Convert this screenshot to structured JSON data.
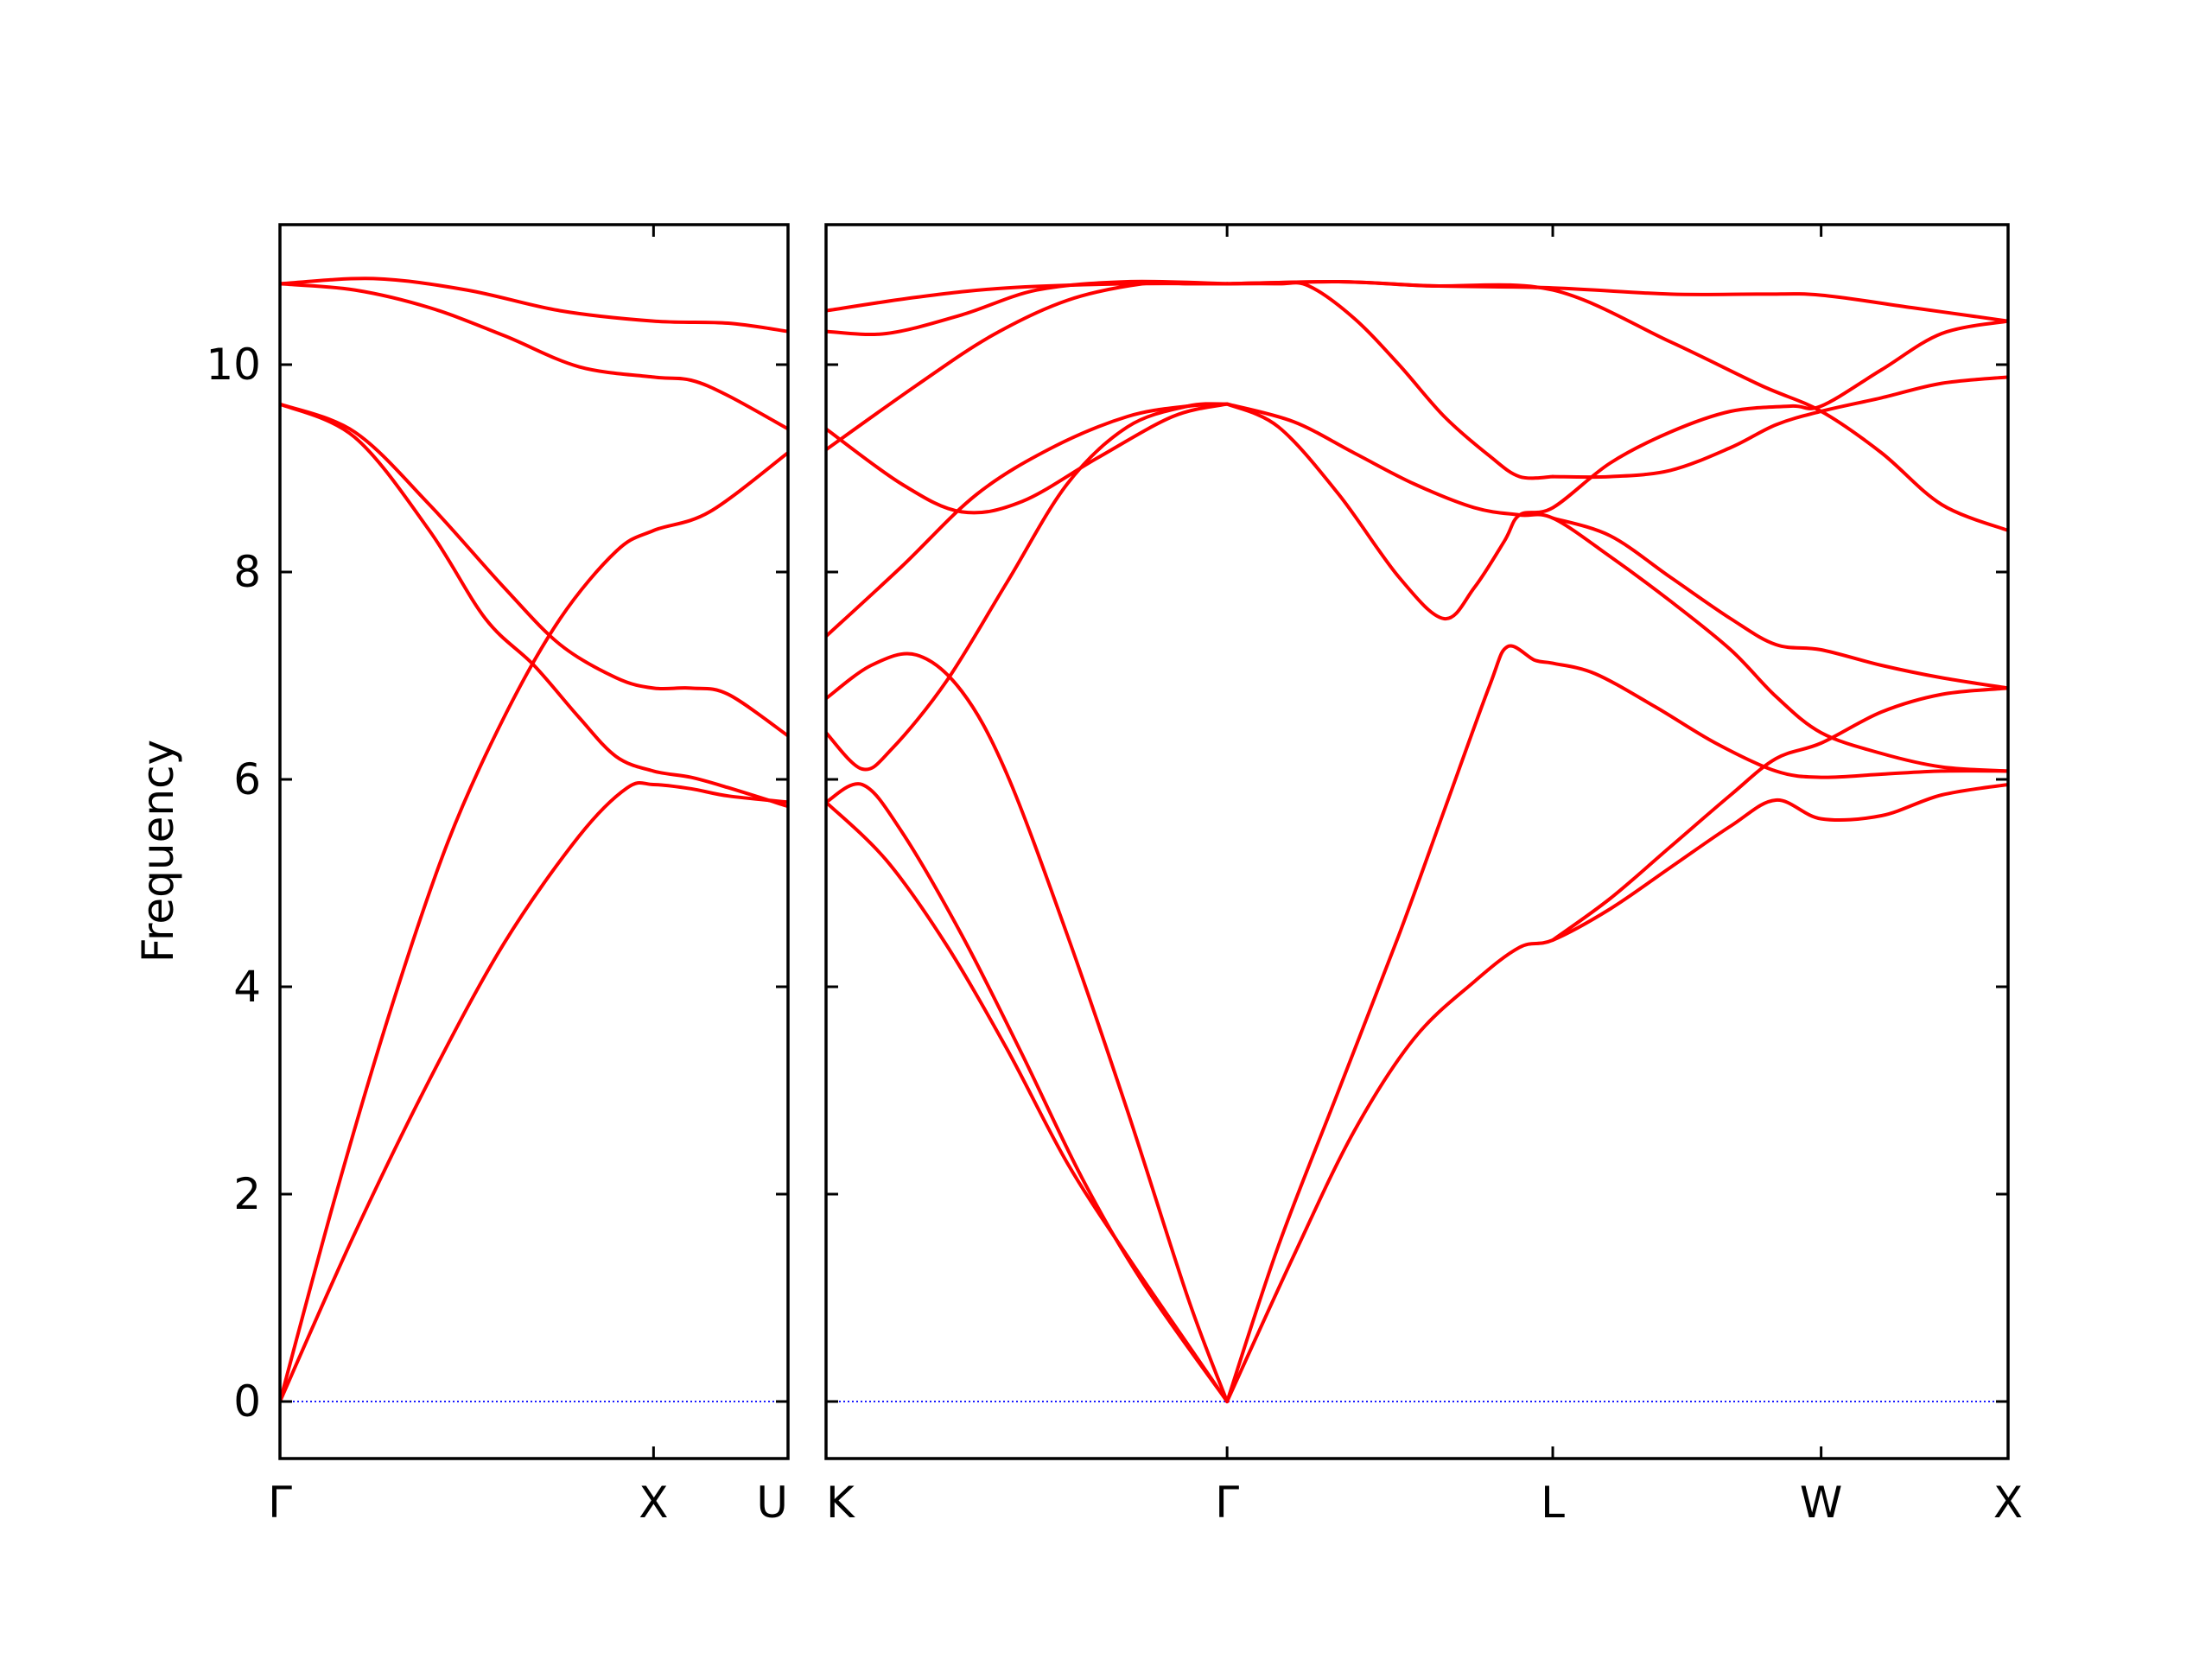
{
  "chart_data": {
    "type": "line",
    "ylabel": "Frequency",
    "xlabel": "",
    "title": "",
    "ylim": [
      -0.55,
      11.35
    ],
    "yticks": [
      0,
      2,
      4,
      6,
      8,
      10
    ],
    "colors": {
      "bands": "#ff0000",
      "zero_line": "#1a1aff",
      "axes": "#000000"
    },
    "zero_line_style": "dotted",
    "grid": false,
    "panels": [
      {
        "name": "segment-gamma-x-u",
        "xlim": [
          0,
          1.36
        ],
        "kpoints": [
          {
            "label": "Γ",
            "x": 0
          },
          {
            "label": "X",
            "x": 1.0
          },
          {
            "label": "U",
            "x": 1.36
          }
        ],
        "bands": [
          [
            [
              0,
              0
            ],
            [
              0.2,
              1.62
            ],
            [
              0.4,
              3.1
            ],
            [
              0.6,
              4.42
            ],
            [
              0.8,
              5.45
            ],
            [
              0.93,
              5.92
            ],
            [
              1.0,
              5.95
            ],
            [
              1.1,
              5.91
            ],
            [
              1.2,
              5.84
            ],
            [
              1.36,
              5.78
            ]
          ],
          [
            [
              0,
              0
            ],
            [
              0.15,
              2.0
            ],
            [
              0.3,
              3.82
            ],
            [
              0.45,
              5.4
            ],
            [
              0.6,
              6.6
            ],
            [
              0.75,
              7.55
            ],
            [
              0.9,
              8.2
            ],
            [
              1.0,
              8.4
            ],
            [
              1.15,
              8.58
            ],
            [
              1.36,
              9.15
            ]
          ],
          [
            [
              0,
              9.62
            ],
            [
              0.2,
              9.3
            ],
            [
              0.4,
              8.4
            ],
            [
              0.55,
              7.55
            ],
            [
              0.68,
              7.1
            ],
            [
              0.8,
              6.6
            ],
            [
              0.9,
              6.22
            ],
            [
              1.0,
              6.08
            ],
            [
              1.1,
              6.02
            ],
            [
              1.2,
              5.92
            ],
            [
              1.36,
              5.74
            ]
          ],
          [
            [
              0,
              9.62
            ],
            [
              0.2,
              9.35
            ],
            [
              0.4,
              8.65
            ],
            [
              0.6,
              7.85
            ],
            [
              0.75,
              7.3
            ],
            [
              0.9,
              6.98
            ],
            [
              1.0,
              6.88
            ],
            [
              1.1,
              6.88
            ],
            [
              1.2,
              6.82
            ],
            [
              1.36,
              6.42
            ]
          ],
          [
            [
              0,
              10.78
            ],
            [
              0.2,
              10.72
            ],
            [
              0.4,
              10.55
            ],
            [
              0.6,
              10.28
            ],
            [
              0.8,
              9.98
            ],
            [
              1.0,
              9.88
            ],
            [
              1.1,
              9.85
            ],
            [
              1.2,
              9.7
            ],
            [
              1.36,
              9.38
            ]
          ],
          [
            [
              0,
              10.78
            ],
            [
              0.25,
              10.83
            ],
            [
              0.5,
              10.72
            ],
            [
              0.75,
              10.52
            ],
            [
              1.0,
              10.42
            ],
            [
              1.2,
              10.4
            ],
            [
              1.36,
              10.32
            ]
          ]
        ]
      },
      {
        "name": "segment-k-gamma-l-w-x",
        "xlim": [
          0,
          3.92
        ],
        "kpoints": [
          {
            "label": "K",
            "x": 0
          },
          {
            "label": "Γ",
            "x": 1.33
          },
          {
            "label": "L",
            "x": 2.41
          },
          {
            "label": "W",
            "x": 3.3
          },
          {
            "label": "X",
            "x": 3.92
          }
        ],
        "bands": [
          [
            [
              0,
              5.78
            ],
            [
              0.2,
              5.22
            ],
            [
              0.4,
              4.4
            ],
            [
              0.6,
              3.4
            ],
            [
              0.8,
              2.3
            ],
            [
              1.0,
              1.4
            ],
            [
              1.2,
              0.55
            ],
            [
              1.33,
              0
            ]
          ],
          [
            [
              0,
              5.78
            ],
            [
              0.12,
              5.95
            ],
            [
              0.25,
              5.5
            ],
            [
              0.45,
              4.5
            ],
            [
              0.65,
              3.35
            ],
            [
              0.85,
              2.15
            ],
            [
              1.05,
              1.15
            ],
            [
              1.33,
              0
            ]
          ],
          [
            [
              0,
              6.78
            ],
            [
              0.15,
              7.1
            ],
            [
              0.3,
              7.2
            ],
            [
              0.45,
              6.85
            ],
            [
              0.6,
              6.05
            ],
            [
              0.8,
              4.5
            ],
            [
              1.0,
              2.8
            ],
            [
              1.2,
              1.0
            ],
            [
              1.33,
              0
            ]
          ],
          [
            [
              0,
              6.45
            ],
            [
              0.12,
              6.1
            ],
            [
              0.22,
              6.3
            ],
            [
              0.4,
              6.95
            ],
            [
              0.6,
              7.9
            ],
            [
              0.8,
              8.85
            ],
            [
              1.0,
              9.4
            ],
            [
              1.2,
              9.6
            ],
            [
              1.33,
              9.62
            ]
          ],
          [
            [
              0,
              7.38
            ],
            [
              0.25,
              8.05
            ],
            [
              0.5,
              8.75
            ],
            [
              0.75,
              9.2
            ],
            [
              1.0,
              9.5
            ],
            [
              1.2,
              9.6
            ],
            [
              1.33,
              9.62
            ]
          ],
          [
            [
              0,
              9.38
            ],
            [
              0.25,
              8.85
            ],
            [
              0.45,
              8.58
            ],
            [
              0.65,
              8.68
            ],
            [
              0.9,
              9.1
            ],
            [
              1.15,
              9.5
            ],
            [
              1.33,
              9.62
            ]
          ],
          [
            [
              0,
              9.18
            ],
            [
              0.3,
              9.8
            ],
            [
              0.55,
              10.28
            ],
            [
              0.8,
              10.62
            ],
            [
              1.05,
              10.78
            ],
            [
              1.2,
              10.78
            ],
            [
              1.33,
              10.78
            ]
          ],
          [
            [
              0,
              10.32
            ],
            [
              0.2,
              10.3
            ],
            [
              0.45,
              10.48
            ],
            [
              0.7,
              10.72
            ],
            [
              1.0,
              10.8
            ],
            [
              1.33,
              10.78
            ]
          ],
          [
            [
              0,
              10.52
            ],
            [
              0.3,
              10.65
            ],
            [
              0.6,
              10.74
            ],
            [
              1.0,
              10.78
            ],
            [
              1.33,
              10.78
            ]
          ],
          [
            [
              1.33,
              0
            ],
            [
              1.5,
              1.5
            ],
            [
              1.7,
              3.0
            ],
            [
              1.9,
              4.5
            ],
            [
              2.05,
              5.7
            ],
            [
              2.2,
              6.9
            ],
            [
              2.26,
              7.28
            ],
            [
              2.35,
              7.15
            ],
            [
              2.41,
              7.12
            ],
            [
              2.55,
              7.02
            ],
            [
              2.75,
              6.7
            ],
            [
              2.95,
              6.35
            ],
            [
              3.15,
              6.08
            ],
            [
              3.3,
              6.02
            ],
            [
              3.5,
              6.05
            ],
            [
              3.7,
              6.08
            ],
            [
              3.92,
              6.08
            ]
          ],
          [
            [
              1.33,
              0
            ],
            [
              1.55,
              1.4
            ],
            [
              1.75,
              2.6
            ],
            [
              1.95,
              3.5
            ],
            [
              2.15,
              4.05
            ],
            [
              2.3,
              4.38
            ],
            [
              2.41,
              4.45
            ],
            [
              2.6,
              4.75
            ],
            [
              2.8,
              5.15
            ],
            [
              3.0,
              5.55
            ],
            [
              3.15,
              5.8
            ],
            [
              3.3,
              5.62
            ],
            [
              3.5,
              5.65
            ],
            [
              3.7,
              5.85
            ],
            [
              3.92,
              5.95
            ]
          ],
          [
            [
              2.41,
              4.45
            ],
            [
              2.6,
              4.85
            ],
            [
              2.8,
              5.35
            ],
            [
              3.0,
              5.85
            ],
            [
              3.15,
              6.2
            ],
            [
              3.3,
              6.35
            ],
            [
              3.5,
              6.65
            ],
            [
              3.7,
              6.82
            ],
            [
              3.92,
              6.88
            ]
          ],
          [
            [
              1.33,
              9.62
            ],
            [
              1.5,
              9.4
            ],
            [
              1.7,
              8.75
            ],
            [
              1.9,
              7.95
            ],
            [
              2.05,
              7.55
            ],
            [
              2.15,
              7.85
            ],
            [
              2.25,
              8.3
            ],
            [
              2.3,
              8.55
            ],
            [
              2.41,
              8.62
            ],
            [
              2.6,
              9.05
            ],
            [
              2.8,
              9.35
            ],
            [
              3.0,
              9.55
            ],
            [
              3.2,
              9.6
            ],
            [
              3.3,
              9.6
            ],
            [
              3.5,
              9.95
            ],
            [
              3.7,
              10.3
            ],
            [
              3.92,
              10.42
            ]
          ],
          [
            [
              1.33,
              9.62
            ],
            [
              1.55,
              9.45
            ],
            [
              1.75,
              9.15
            ],
            [
              1.95,
              8.85
            ],
            [
              2.15,
              8.62
            ],
            [
              2.3,
              8.55
            ],
            [
              2.41,
              8.52
            ],
            [
              2.6,
              8.15
            ],
            [
              2.8,
              7.72
            ],
            [
              3.0,
              7.25
            ],
            [
              3.15,
              6.8
            ],
            [
              3.3,
              6.45
            ],
            [
              3.5,
              6.25
            ],
            [
              3.7,
              6.12
            ],
            [
              3.92,
              6.08
            ]
          ],
          [
            [
              2.41,
              8.52
            ],
            [
              2.6,
              8.35
            ],
            [
              2.8,
              7.95
            ],
            [
              3.0,
              7.55
            ],
            [
              3.15,
              7.3
            ],
            [
              3.3,
              7.25
            ],
            [
              3.5,
              7.1
            ],
            [
              3.7,
              6.98
            ],
            [
              3.92,
              6.88
            ]
          ],
          [
            [
              2.41,
              8.92
            ],
            [
              2.6,
              8.92
            ],
            [
              2.8,
              8.98
            ],
            [
              3.0,
              9.2
            ],
            [
              3.15,
              9.42
            ],
            [
              3.3,
              9.55
            ],
            [
              3.5,
              9.68
            ],
            [
              3.7,
              9.82
            ],
            [
              3.92,
              9.88
            ]
          ],
          [
            [
              1.33,
              10.78
            ],
            [
              1.5,
              10.78
            ],
            [
              1.6,
              10.76
            ],
            [
              1.75,
              10.45
            ],
            [
              1.9,
              10.0
            ],
            [
              2.05,
              9.5
            ],
            [
              2.2,
              9.12
            ],
            [
              2.3,
              8.92
            ],
            [
              2.41,
              8.92
            ]
          ],
          [
            [
              1.33,
              10.78
            ],
            [
              1.7,
              10.8
            ],
            [
              2.0,
              10.76
            ],
            [
              2.41,
              10.72
            ],
            [
              2.8,
              10.22
            ],
            [
              3.1,
              9.8
            ],
            [
              3.3,
              9.55
            ],
            [
              3.5,
              9.15
            ],
            [
              3.7,
              8.65
            ],
            [
              3.92,
              8.4
            ]
          ],
          [
            [
              1.33,
              10.78
            ],
            [
              1.7,
              10.8
            ],
            [
              2.0,
              10.76
            ],
            [
              2.41,
              10.74
            ],
            [
              2.8,
              10.68
            ],
            [
              3.1,
              10.68
            ],
            [
              3.3,
              10.67
            ],
            [
              3.6,
              10.55
            ],
            [
              3.92,
              10.42
            ]
          ]
        ]
      }
    ]
  }
}
